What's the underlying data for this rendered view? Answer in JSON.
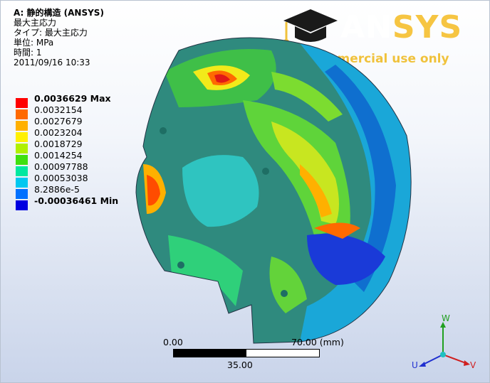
{
  "header": {
    "title": "A: 静的構造 (ANSYS)",
    "result": "最大主応力",
    "type": "タイプ: 最大主応力",
    "unit": "単位: MPa",
    "time": "時間: 1",
    "datetime": "2011/09/16 10:33"
  },
  "logo": {
    "word_a": "A",
    "word_n": "N",
    "word_sys": "SYS",
    "subtitle": "Noncommercial use only"
  },
  "legend": {
    "entries": [
      {
        "label": "0.0036629 Max",
        "color": "#ff0000"
      },
      {
        "label": "0.0032154",
        "color": "#ff6a00"
      },
      {
        "label": "0.0027679",
        "color": "#ffb000"
      },
      {
        "label": "0.0023204",
        "color": "#fff000"
      },
      {
        "label": "0.0018729",
        "color": "#b0f000"
      },
      {
        "label": "0.0014254",
        "color": "#3fe010"
      },
      {
        "label": "0.00097788",
        "color": "#00e8a0"
      },
      {
        "label": "0.00053038",
        "color": "#00c8f0"
      },
      {
        "label": "8.2886e-5",
        "color": "#0070ff"
      },
      {
        "label": "-0.00036461 Min",
        "color": "#0000e0"
      }
    ]
  },
  "scale_bar": {
    "left_label": "0.00",
    "mid_label": "35.00",
    "right_label": "70.00 (mm)"
  },
  "triad": {
    "w": "W",
    "u": "U",
    "v": "V"
  },
  "colors": {
    "background_top": "#ffffff",
    "background_bottom": "#c9d4ea",
    "logo_yellow": "#f0c23c"
  }
}
